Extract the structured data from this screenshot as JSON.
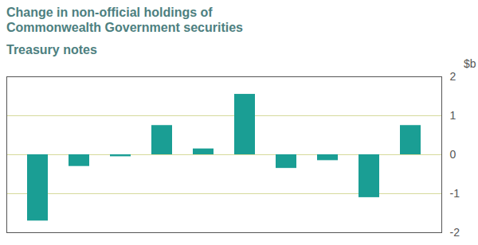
{
  "chart_data": {
    "type": "bar",
    "title": "Change in non-official holdings of Commonwealth Government securities",
    "subtitle": "Treasury notes",
    "ylabel": "$b",
    "categories": [
      null,
      null,
      null,
      null,
      null,
      null,
      null,
      null,
      null,
      null
    ],
    "values": [
      -1.7,
      -0.3,
      -0.05,
      0.75,
      0.15,
      1.55,
      -0.35,
      -0.15,
      -1.1,
      0.75
    ],
    "color": "#1a9e94",
    "ylim": [
      -2,
      2
    ],
    "yticks": [
      -2,
      -1,
      0,
      1,
      2
    ],
    "grid": true,
    "tick_labels": "y"
  }
}
